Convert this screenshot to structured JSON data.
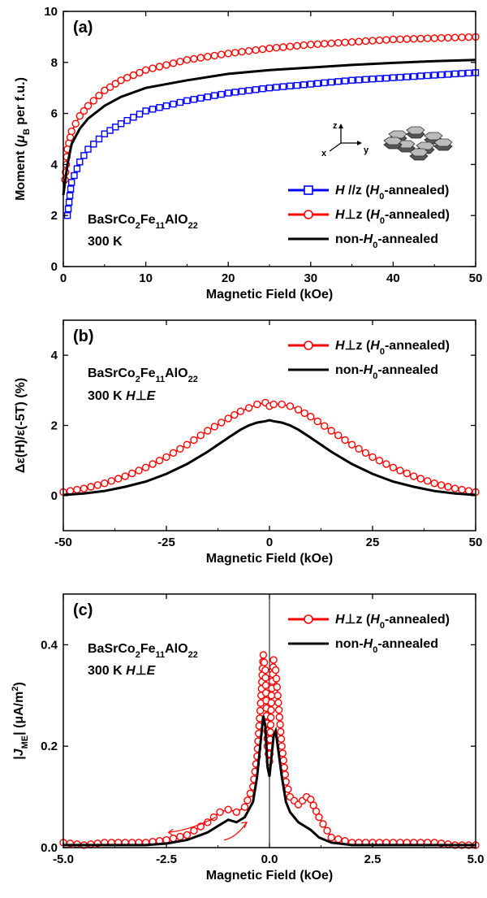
{
  "chart_data": [
    {
      "panel_label": "(a)",
      "type": "line",
      "xlabel": "Magnetic Field (kOe)",
      "ylabel": "Moment (μB per f.u.)",
      "ylabel_parts": [
        "Moment (",
        "μ",
        "B",
        " per f.u.)"
      ],
      "xlim": [
        0,
        50
      ],
      "ylim": [
        0,
        10
      ],
      "xticks": [
        0,
        10,
        20,
        30,
        40,
        50
      ],
      "yticks": [
        0,
        2,
        4,
        6,
        8,
        10
      ],
      "annotation_lines": [
        {
          "text": "BaSrCo2Fe11AlO22",
          "parts": [
            "BaSrCo",
            "2",
            "Fe",
            "11",
            "AlO",
            "22"
          ]
        },
        {
          "text": "300 K",
          "parts": [
            "300 K"
          ]
        }
      ],
      "inset_axes": [
        "z",
        "x",
        "y"
      ],
      "legend_location": "lower-right",
      "series": [
        {
          "name": "H //z (H0-annealed)",
          "label_parts": [
            "H",
            " //z (",
            "H",
            "0",
            "-annealed)"
          ],
          "color": "#0000ff",
          "marker": "square",
          "x": [
            0.5,
            1,
            2,
            3,
            5,
            7,
            10,
            15,
            20,
            25,
            30,
            35,
            40,
            45,
            50
          ],
          "y": [
            2.0,
            3.3,
            4.1,
            4.6,
            5.2,
            5.6,
            6.1,
            6.5,
            6.8,
            7.0,
            7.15,
            7.3,
            7.4,
            7.5,
            7.6
          ]
        },
        {
          "name": "H⊥z (H0-annealed)",
          "label_parts": [
            "H",
            "⊥z (",
            "H",
            "0",
            "-annealed)"
          ],
          "color": "#ff0000",
          "marker": "circle",
          "x": [
            0.2,
            0.5,
            1,
            2,
            3,
            5,
            7,
            10,
            15,
            20,
            25,
            30,
            35,
            40,
            45,
            50
          ],
          "y": [
            3.4,
            4.6,
            5.3,
            5.9,
            6.3,
            6.9,
            7.3,
            7.7,
            8.1,
            8.35,
            8.55,
            8.7,
            8.8,
            8.9,
            8.95,
            9.0
          ]
        },
        {
          "name": "non-H0-annealed",
          "label_parts": [
            "non-",
            "H",
            "0",
            "-annealed"
          ],
          "color": "#000000",
          "marker": "none",
          "x": [
            0,
            0.5,
            1,
            2,
            3,
            5,
            7,
            10,
            15,
            20,
            25,
            30,
            35,
            40,
            45,
            50
          ],
          "y": [
            2.8,
            4.0,
            4.8,
            5.4,
            5.8,
            6.3,
            6.65,
            7.0,
            7.3,
            7.55,
            7.7,
            7.8,
            7.9,
            7.98,
            8.05,
            8.1
          ]
        }
      ]
    },
    {
      "panel_label": "(b)",
      "type": "line",
      "xlabel": "Magnetic Field (kOe)",
      "ylabel": "Δε(H)/ε(-5T) (%)",
      "xlim": [
        -50,
        50
      ],
      "ylim": [
        -1,
        5
      ],
      "xticks": [
        -50,
        -25,
        0,
        25,
        50
      ],
      "yticks": [
        0,
        2,
        4
      ],
      "annotation_lines": [
        {
          "text": "BaSrCo2Fe11AlO22",
          "parts": [
            "BaSrCo",
            "2",
            "Fe",
            "11",
            "AlO",
            "22"
          ]
        },
        {
          "text": "300 K H⊥E",
          "parts": [
            "300 K  ",
            "H",
            "⊥",
            "E"
          ]
        }
      ],
      "legend_location": "upper-right",
      "series": [
        {
          "name": "H⊥z (H0-annealed)",
          "label_parts": [
            "H",
            "⊥z (",
            "H",
            "0",
            "-annealed)"
          ],
          "color": "#ff0000",
          "marker": "circle",
          "x": [
            -50,
            -45,
            -40,
            -35,
            -30,
            -25,
            -20,
            -15,
            -10,
            -7,
            -5,
            -3,
            -1,
            0,
            1,
            3,
            5,
            7,
            10,
            15,
            20,
            25,
            30,
            35,
            40,
            45,
            50
          ],
          "y": [
            0.1,
            0.2,
            0.35,
            0.55,
            0.8,
            1.1,
            1.45,
            1.85,
            2.2,
            2.4,
            2.5,
            2.6,
            2.65,
            2.55,
            2.6,
            2.6,
            2.55,
            2.45,
            2.25,
            1.85,
            1.45,
            1.1,
            0.8,
            0.55,
            0.35,
            0.2,
            0.1
          ]
        },
        {
          "name": "non-H0-annealed",
          "label_parts": [
            "non-",
            "H",
            "0",
            "-annealed"
          ],
          "color": "#000000",
          "marker": "none",
          "x": [
            -50,
            -45,
            -40,
            -35,
            -30,
            -25,
            -20,
            -15,
            -10,
            -7,
            -5,
            -3,
            -1,
            0,
            1,
            3,
            5,
            7,
            10,
            15,
            20,
            25,
            30,
            35,
            40,
            45,
            50
          ],
          "y": [
            0.02,
            0.06,
            0.13,
            0.25,
            0.4,
            0.62,
            0.9,
            1.25,
            1.65,
            1.88,
            2.0,
            2.08,
            2.12,
            2.15,
            2.12,
            2.08,
            2.0,
            1.88,
            1.65,
            1.25,
            0.9,
            0.62,
            0.4,
            0.25,
            0.13,
            0.06,
            0.02
          ]
        }
      ]
    },
    {
      "panel_label": "(c)",
      "type": "line",
      "xlabel": "Magnetic Field (kOe)",
      "ylabel": "|JME| (μA/m2)",
      "ylabel_parts": [
        "|",
        "J",
        "ME",
        "|  (μA/m",
        "2",
        ")"
      ],
      "xlim": [
        -5,
        5
      ],
      "ylim": [
        0,
        0.5
      ],
      "xticks": [
        -5.0,
        -2.5,
        0.0,
        2.5,
        5.0
      ],
      "xtick_labels": [
        "-5.0",
        "-2.5",
        "0.0",
        "2.5",
        "5.0"
      ],
      "yticks": [
        0.0,
        0.2,
        0.4
      ],
      "ytick_labels": [
        "0.0",
        "0.2",
        "0.4"
      ],
      "annotation_lines": [
        {
          "text": "BaSrCo2Fe11AlO22",
          "parts": [
            "BaSrCo",
            "2",
            "Fe",
            "11",
            "AlO",
            "22"
          ]
        },
        {
          "text": "300 K H⊥E",
          "parts": [
            "300 K  ",
            "H",
            "⊥",
            "E"
          ]
        }
      ],
      "legend_location": "upper-right",
      "series": [
        {
          "name": "H⊥z (H0-annealed)",
          "label_parts": [
            "H",
            "⊥z (",
            "H",
            "0",
            "-annealed)"
          ],
          "color": "#ff0000",
          "marker": "circle",
          "x": [
            -5,
            -4.5,
            -4,
            -3.5,
            -3,
            -2.5,
            -2,
            -1.5,
            -1.2,
            -1.0,
            -0.8,
            -0.6,
            -0.4,
            -0.3,
            -0.2,
            -0.15,
            -0.1,
            -0.05,
            0,
            0.05,
            0.1,
            0.15,
            0.2,
            0.3,
            0.4,
            0.5,
            0.7,
            0.9,
            1.0,
            1.2,
            1.5,
            2,
            2.5,
            3,
            3.5,
            4,
            4.5,
            5
          ],
          "y": [
            0.01,
            0.005,
            0.01,
            0.01,
            0.01,
            0.015,
            0.025,
            0.05,
            0.07,
            0.075,
            0.07,
            0.08,
            0.12,
            0.18,
            0.3,
            0.38,
            0.35,
            0.2,
            0.17,
            0.3,
            0.37,
            0.35,
            0.3,
            0.2,
            0.13,
            0.1,
            0.085,
            0.1,
            0.095,
            0.06,
            0.02,
            0.01,
            0.01,
            0.01,
            0.01,
            0.01,
            0.005,
            0.005
          ]
        },
        {
          "name": "non-H0-annealed",
          "label_parts": [
            "non-",
            "H",
            "0",
            "-annealed"
          ],
          "color": "#000000",
          "marker": "none",
          "x": [
            -5,
            -4,
            -3,
            -2.5,
            -2,
            -1.5,
            -1.2,
            -1.0,
            -0.8,
            -0.6,
            -0.4,
            -0.3,
            -0.2,
            -0.15,
            -0.1,
            -0.05,
            0,
            0.05,
            0.1,
            0.15,
            0.2,
            0.3,
            0.4,
            0.5,
            0.7,
            0.9,
            1.0,
            1.2,
            1.5,
            2,
            3,
            4,
            5
          ],
          "y": [
            0.005,
            0.005,
            0.005,
            0.008,
            0.015,
            0.03,
            0.045,
            0.055,
            0.05,
            0.06,
            0.09,
            0.14,
            0.22,
            0.26,
            0.24,
            0.16,
            0.14,
            0.18,
            0.22,
            0.23,
            0.2,
            0.14,
            0.09,
            0.07,
            0.05,
            0.04,
            0.035,
            0.02,
            0.01,
            0.005,
            0.005,
            0.005,
            0.005
          ]
        }
      ]
    }
  ]
}
